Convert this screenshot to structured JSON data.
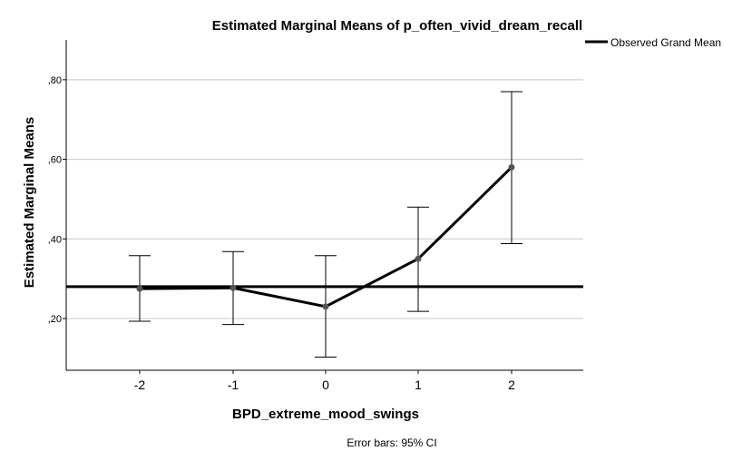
{
  "chart_data": {
    "type": "line",
    "title": "Estimated Marginal Means of p_often_vivid_dream_recall",
    "xlabel": "BPD_extreme_mood_swings",
    "ylabel": "Estimated Marginal Means",
    "categories": [
      "-2",
      "-1",
      "0",
      "1",
      "2"
    ],
    "series": [
      {
        "values": [
          0.275,
          0.277,
          0.23,
          0.35,
          0.58
        ],
        "ci_lower": [
          0.193,
          0.185,
          0.103,
          0.218,
          0.388
        ],
        "ci_upper": [
          0.358,
          0.368,
          0.358,
          0.48,
          0.77
        ]
      }
    ],
    "reference_line": {
      "name": "Observed Grand Mean",
      "value": 0.28
    },
    "y_ticks": [
      0.2,
      0.4,
      0.6,
      0.8
    ],
    "y_tick_labels": [
      ",20",
      ",40",
      ",60",
      ",80"
    ],
    "ylim": [
      0.07,
      0.9
    ],
    "grid": true,
    "legend_position": "top-right",
    "footnote": "Error bars: 95% CI",
    "colors": {
      "line": "#000000",
      "marker": "#555555",
      "grid": "#c8c8c8",
      "reference": "#000000"
    }
  }
}
